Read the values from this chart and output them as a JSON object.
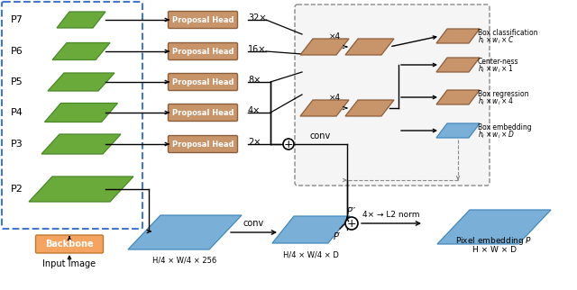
{
  "gc": "#6aaa3a",
  "ge": "#4a8828",
  "bc": "#c8956b",
  "be": "#8b5e3c",
  "blc": "#7ab0d8",
  "ble": "#4488bb",
  "oc": "#f4a460",
  "oe": "#c07830",
  "bg": "#ffffff",
  "p_labels": [
    "P7",
    "P6",
    "P5",
    "P4",
    "P3",
    "P2"
  ],
  "scale_labels": [
    "32×",
    "16×",
    "8×",
    "4×",
    "2×"
  ],
  "head_text": "Proposal Head",
  "bb_text": "Backbone",
  "in_text": "Input Image",
  "out1a": "Box classification",
  "out1b": "$h_i \\times w_i \\times C$",
  "out2a": "Center-ness",
  "out2b": "$h_i \\times w_i \\times 1$",
  "out3a": "Box regression",
  "out3b": "$h_i \\times w_i \\times 4$",
  "out4a": "Box embedding",
  "out4b": "$h_i \\times w_i \\times D$",
  "x4a": "×4",
  "x4b": "×4",
  "conv1": "conv",
  "conv2": "conv",
  "l2": "4× → L2 norm",
  "pp": "P′′",
  "pr": "P′",
  "bl1": "H/4 × W/4 × 256",
  "bl2": "H/4 × W/4 × D",
  "bl3": "Pixel embedding $P$",
  "bl4": "H × W × D"
}
